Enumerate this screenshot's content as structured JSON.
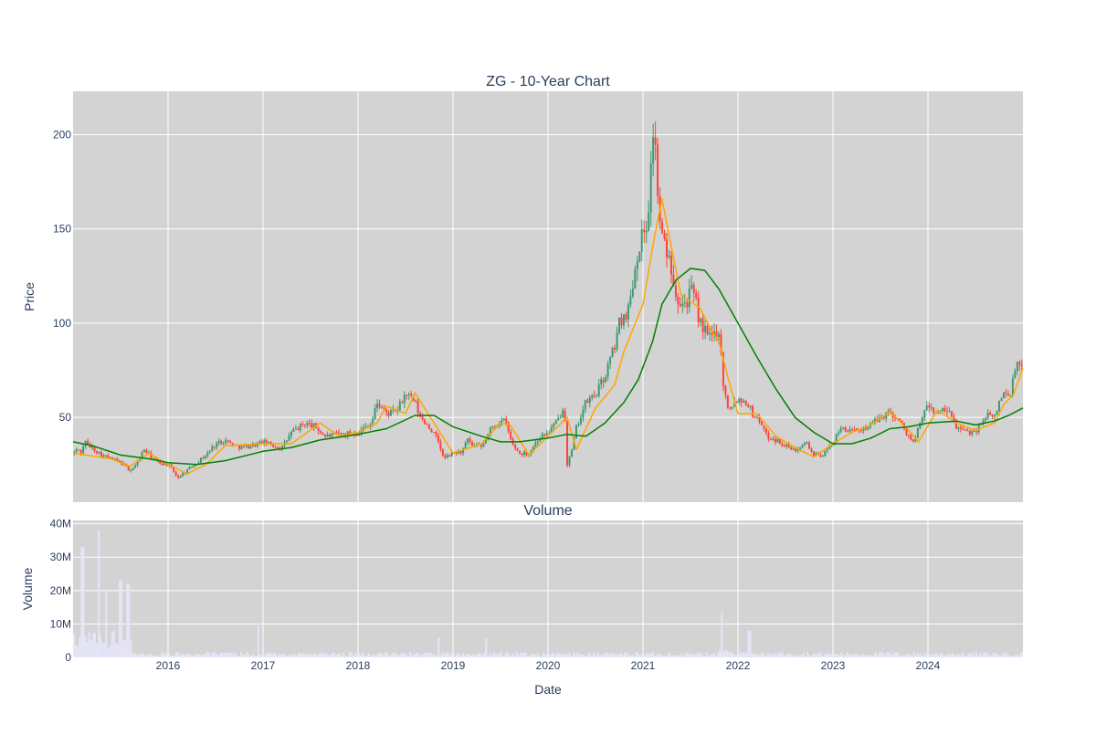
{
  "chart_data": {
    "type": "candlestick",
    "title": "ZG - 10-Year Chart",
    "price_panel": {
      "ylabel": "Price",
      "ylim": [
        5,
        223
      ],
      "y_ticks": [
        50,
        100,
        150,
        200
      ],
      "grid": true,
      "background": "#d3d3d3",
      "up_color": "#3d9970",
      "down_color": "#ff4136",
      "moving_averages": [
        {
          "color": "#ffa500",
          "values_approx": [
            [
              2015.0,
              31
            ],
            [
              2015.4,
              28
            ],
            [
              2015.6,
              24
            ],
            [
              2015.8,
              31
            ],
            [
              2016.0,
              25
            ],
            [
              2016.2,
              20
            ],
            [
              2016.4,
              25
            ],
            [
              2016.6,
              35
            ],
            [
              2017.0,
              36
            ],
            [
              2017.3,
              36
            ],
            [
              2017.6,
              47
            ],
            [
              2017.8,
              40
            ],
            [
              2018.0,
              42
            ],
            [
              2018.2,
              47
            ],
            [
              2018.3,
              56
            ],
            [
              2018.5,
              52
            ],
            [
              2018.6,
              63
            ],
            [
              2018.8,
              47
            ],
            [
              2019.0,
              31
            ],
            [
              2019.3,
              36
            ],
            [
              2019.5,
              47
            ],
            [
              2019.6,
              46
            ],
            [
              2019.8,
              30
            ],
            [
              2020.0,
              40
            ],
            [
              2020.2,
              50
            ],
            [
              2020.3,
              33
            ],
            [
              2020.5,
              55
            ],
            [
              2020.7,
              67
            ],
            [
              2020.8,
              85
            ],
            [
              2021.0,
              110
            ],
            [
              2021.1,
              140
            ],
            [
              2021.2,
              166
            ],
            [
              2021.3,
              140
            ],
            [
              2021.4,
              115
            ],
            [
              2021.6,
              108
            ],
            [
              2021.7,
              98
            ],
            [
              2021.8,
              90
            ],
            [
              2021.9,
              70
            ],
            [
              2022.0,
              52
            ],
            [
              2022.2,
              52
            ],
            [
              2022.4,
              40
            ],
            [
              2022.6,
              34
            ],
            [
              2022.8,
              29
            ],
            [
              2023.0,
              36
            ],
            [
              2023.2,
              42
            ],
            [
              2023.4,
              46
            ],
            [
              2023.6,
              53
            ],
            [
              2023.8,
              43
            ],
            [
              2023.9,
              37
            ],
            [
              2024.1,
              54
            ],
            [
              2024.3,
              47
            ],
            [
              2024.5,
              43
            ],
            [
              2024.7,
              47
            ],
            [
              2024.8,
              57
            ],
            [
              2024.9,
              62
            ],
            [
              2025.0,
              76
            ]
          ]
        },
        {
          "color": "#008000",
          "values_approx": [
            [
              2015.0,
              37
            ],
            [
              2015.2,
              35
            ],
            [
              2015.5,
              30
            ],
            [
              2015.8,
              28
            ],
            [
              2016.0,
              26
            ],
            [
              2016.3,
              25
            ],
            [
              2016.6,
              27
            ],
            [
              2017.0,
              32
            ],
            [
              2017.3,
              34
            ],
            [
              2017.6,
              38
            ],
            [
              2018.0,
              41
            ],
            [
              2018.3,
              44
            ],
            [
              2018.6,
              51
            ],
            [
              2018.8,
              51
            ],
            [
              2019.0,
              45
            ],
            [
              2019.3,
              40
            ],
            [
              2019.5,
              37
            ],
            [
              2019.7,
              37
            ],
            [
              2020.0,
              39
            ],
            [
              2020.2,
              41
            ],
            [
              2020.4,
              40
            ],
            [
              2020.6,
              47
            ],
            [
              2020.8,
              58
            ],
            [
              2020.95,
              70
            ],
            [
              2021.1,
              90
            ],
            [
              2021.2,
              110
            ],
            [
              2021.35,
              123
            ],
            [
              2021.5,
              129
            ],
            [
              2021.65,
              128
            ],
            [
              2021.8,
              118
            ],
            [
              2022.0,
              100
            ],
            [
              2022.2,
              82
            ],
            [
              2022.4,
              65
            ],
            [
              2022.6,
              50
            ],
            [
              2022.8,
              42
            ],
            [
              2023.0,
              36
            ],
            [
              2023.2,
              36
            ],
            [
              2023.4,
              39
            ],
            [
              2023.6,
              44
            ],
            [
              2023.8,
              45
            ],
            [
              2024.0,
              47
            ],
            [
              2024.3,
              48
            ],
            [
              2024.5,
              46
            ],
            [
              2024.7,
              48
            ],
            [
              2024.85,
              51
            ],
            [
              2025.0,
              55
            ]
          ]
        }
      ]
    },
    "volume_panel": {
      "title": "Volume",
      "ylabel": "Volume",
      "ylim": [
        0,
        41000000
      ],
      "y_ticks": [
        0,
        10000000,
        20000000,
        30000000,
        40000000
      ],
      "y_tick_labels": [
        "0",
        "10M",
        "20M",
        "30M",
        "40M"
      ],
      "bar_color": "#e6e6fa",
      "background": "#d3d3d3"
    },
    "x_axis": {
      "label": "Date",
      "xlim": [
        2015.0,
        2025.0
      ],
      "tick_values": [
        2016,
        2017,
        2018,
        2019,
        2020,
        2021,
        2022,
        2023,
        2024
      ],
      "tick_labels": [
        "2016",
        "2017",
        "2018",
        "2019",
        "2020",
        "2021",
        "2022",
        "2023",
        "2024"
      ]
    },
    "price_path_approx": [
      [
        2015.0,
        31
      ],
      [
        2015.05,
        33
      ],
      [
        2015.1,
        31
      ],
      [
        2015.12,
        40
      ],
      [
        2015.15,
        35
      ],
      [
        2015.2,
        34
      ],
      [
        2015.3,
        30
      ],
      [
        2015.4,
        28
      ],
      [
        2015.5,
        26
      ],
      [
        2015.6,
        22
      ],
      [
        2015.65,
        24
      ],
      [
        2015.75,
        33
      ],
      [
        2015.8,
        30
      ],
      [
        2015.9,
        26
      ],
      [
        2016.0,
        25
      ],
      [
        2016.05,
        22
      ],
      [
        2016.1,
        18
      ],
      [
        2016.2,
        22
      ],
      [
        2016.3,
        26
      ],
      [
        2016.4,
        30
      ],
      [
        2016.5,
        36
      ],
      [
        2016.6,
        38
      ],
      [
        2016.7,
        35
      ],
      [
        2016.8,
        34
      ],
      [
        2017.0,
        37
      ],
      [
        2017.1,
        35
      ],
      [
        2017.2,
        34
      ],
      [
        2017.3,
        42
      ],
      [
        2017.45,
        47
      ],
      [
        2017.55,
        45
      ],
      [
        2017.65,
        40
      ],
      [
        2017.8,
        41
      ],
      [
        2018.0,
        42
      ],
      [
        2018.15,
        48
      ],
      [
        2018.2,
        58
      ],
      [
        2018.3,
        52
      ],
      [
        2018.4,
        53
      ],
      [
        2018.45,
        57
      ],
      [
        2018.5,
        63
      ],
      [
        2018.6,
        58
      ],
      [
        2018.65,
        50
      ],
      [
        2018.75,
        45
      ],
      [
        2018.85,
        37
      ],
      [
        2018.9,
        28
      ],
      [
        2019.0,
        31
      ],
      [
        2019.1,
        32
      ],
      [
        2019.15,
        38
      ],
      [
        2019.2,
        35
      ],
      [
        2019.3,
        34
      ],
      [
        2019.4,
        44
      ],
      [
        2019.5,
        48
      ],
      [
        2019.55,
        48
      ],
      [
        2019.62,
        36
      ],
      [
        2019.7,
        31
      ],
      [
        2019.8,
        31
      ],
      [
        2019.9,
        39
      ],
      [
        2020.0,
        42
      ],
      [
        2020.1,
        48
      ],
      [
        2020.15,
        54
      ],
      [
        2020.17,
        60
      ],
      [
        2020.2,
        25
      ],
      [
        2020.25,
        32
      ],
      [
        2020.3,
        45
      ],
      [
        2020.4,
        58
      ],
      [
        2020.5,
        62
      ],
      [
        2020.6,
        72
      ],
      [
        2020.7,
        88
      ],
      [
        2020.75,
        100
      ],
      [
        2020.85,
        108
      ],
      [
        2020.95,
        140
      ],
      [
        2021.05,
        155
      ],
      [
        2021.12,
        212
      ],
      [
        2021.15,
        168
      ],
      [
        2021.2,
        145
      ],
      [
        2021.3,
        130
      ],
      [
        2021.35,
        115
      ],
      [
        2021.45,
        110
      ],
      [
        2021.5,
        118
      ],
      [
        2021.55,
        112
      ],
      [
        2021.6,
        100
      ],
      [
        2021.7,
        92
      ],
      [
        2021.8,
        97
      ],
      [
        2021.85,
        65
      ],
      [
        2021.9,
        55
      ],
      [
        2022.0,
        60
      ],
      [
        2022.1,
        58
      ],
      [
        2022.15,
        52
      ],
      [
        2022.25,
        47
      ],
      [
        2022.3,
        40
      ],
      [
        2022.4,
        38
      ],
      [
        2022.5,
        35
      ],
      [
        2022.6,
        32
      ],
      [
        2022.7,
        38
      ],
      [
        2022.8,
        30
      ],
      [
        2022.9,
        30
      ],
      [
        2023.0,
        37
      ],
      [
        2023.1,
        45
      ],
      [
        2023.2,
        42
      ],
      [
        2023.4,
        46
      ],
      [
        2023.5,
        50
      ],
      [
        2023.6,
        53
      ],
      [
        2023.7,
        48
      ],
      [
        2023.8,
        40
      ],
      [
        2023.85,
        36
      ],
      [
        2023.95,
        52
      ],
      [
        2024.0,
        56
      ],
      [
        2024.1,
        52
      ],
      [
        2024.2,
        54
      ],
      [
        2024.3,
        45
      ],
      [
        2024.4,
        42
      ],
      [
        2024.5,
        43
      ],
      [
        2024.55,
        46
      ],
      [
        2024.6,
        51
      ],
      [
        2024.7,
        50
      ],
      [
        2024.75,
        58
      ],
      [
        2024.8,
        64
      ],
      [
        2024.85,
        60
      ],
      [
        2024.9,
        70
      ],
      [
        2024.93,
        80
      ],
      [
        2025.0,
        74
      ]
    ],
    "volume_spikes_approx": [
      [
        2015.1,
        33000000
      ],
      [
        2015.27,
        38000000
      ],
      [
        2015.35,
        20000000
      ],
      [
        2015.5,
        23000000
      ],
      [
        2015.58,
        22000000
      ],
      [
        2016.95,
        9500000
      ],
      [
        2018.85,
        6000000
      ],
      [
        2019.35,
        6000000
      ],
      [
        2021.83,
        13500000
      ],
      [
        2022.12,
        8000000
      ]
    ]
  }
}
